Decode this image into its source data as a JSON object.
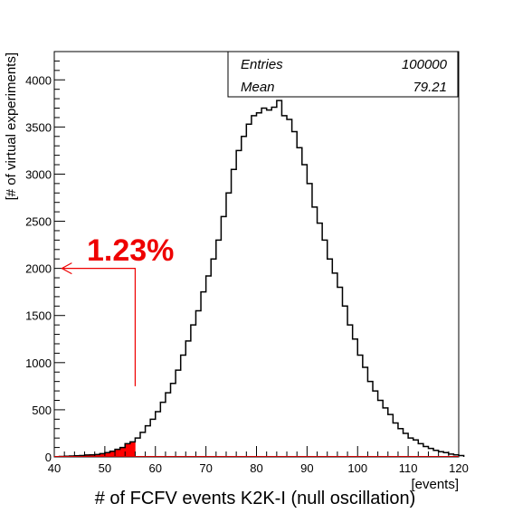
{
  "chart_data": {
    "type": "histogram",
    "xlabel": "# of FCFV events K2K-I (null oscillation)",
    "xunit": "[events]",
    "ylabel": "[# of virtual experiments]",
    "xlim": [
      40,
      120
    ],
    "ylim": [
      0,
      4300
    ],
    "x_ticks": [
      40,
      50,
      60,
      70,
      80,
      90,
      100,
      110,
      120
    ],
    "y_ticks": [
      0,
      500,
      1000,
      1500,
      2000,
      2500,
      3000,
      3500,
      4000
    ],
    "bin_width": 1,
    "bin_start": 41,
    "values": [
      5,
      7,
      10,
      12,
      15,
      20,
      22,
      25,
      35,
      45,
      60,
      80,
      100,
      140,
      160,
      200,
      260,
      330,
      400,
      480,
      580,
      680,
      780,
      920,
      1080,
      1230,
      1400,
      1550,
      1750,
      1920,
      2100,
      2300,
      2550,
      2800,
      3050,
      3250,
      3400,
      3530,
      3620,
      3650,
      3700,
      3680,
      3710,
      3780,
      3620,
      3580,
      3450,
      3280,
      3100,
      2900,
      2650,
      2480,
      2300,
      2100,
      1950,
      1800,
      1600,
      1400,
      1250,
      1080,
      950,
      800,
      700,
      600,
      520,
      450,
      360,
      300,
      250,
      200,
      180,
      140,
      110,
      90,
      70,
      55,
      45,
      30,
      22,
      15
    ],
    "shaded_range": [
      41,
      56
    ],
    "shaded_color": "#ff0000",
    "stats": {
      "entries_label": "Entries",
      "entries_value": "100000",
      "mean_label": "Mean",
      "mean_value": "79.21"
    },
    "annotation": {
      "text": "1.23%",
      "color": "#ee0000",
      "arrow_from_x": 56,
      "arrow_from_y": 750,
      "corner_y": 2000,
      "arrow_to_x": 41.5
    }
  }
}
